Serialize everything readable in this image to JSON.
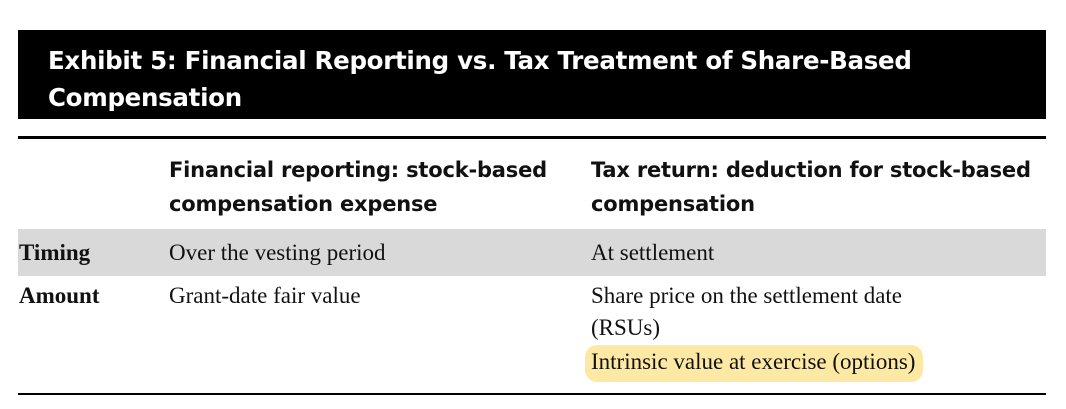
{
  "exhibit": {
    "title_line1": "Exhibit 5: Financial Reporting vs. Tax Treatment of Share-Based",
    "title_line2": "Compensation"
  },
  "columns": {
    "financial_reporting": {
      "line1": "Financial reporting: stock-based",
      "line2": "compensation expense"
    },
    "tax_return": {
      "line1": "Tax return: deduction for stock-based",
      "line2": "compensation"
    }
  },
  "rows": {
    "timing": {
      "label": "Timing",
      "financial_reporting": "Over the vesting period",
      "tax_return": "At settlement"
    },
    "amount": {
      "label": "Amount",
      "financial_reporting": "Grant-date fair value",
      "tax_return_line1": "Share price on the settlement date",
      "tax_return_line2": "(RSUs)",
      "tax_return_highlighted": "Intrinsic value at exercise (options)"
    }
  },
  "colors": {
    "title_bar": "#000000",
    "title_text": "#ffffff",
    "timing_row_shade": "#d9d9d9",
    "highlight": "#fde9a4"
  }
}
